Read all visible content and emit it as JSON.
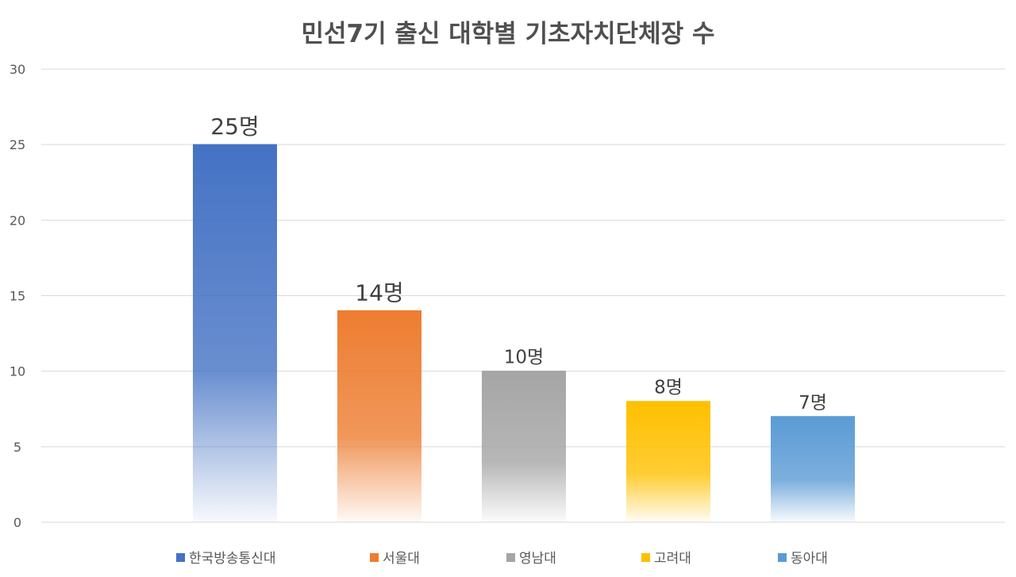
{
  "chart_data": {
    "type": "bar",
    "title": "민선7기 출신 대학별 기초자치단체장 수",
    "categories": [
      "한국방송통신대",
      "서울대",
      "영남대",
      "고려대",
      "동아대"
    ],
    "values": [
      25,
      14,
      10,
      8,
      7
    ],
    "data_labels": [
      "25명",
      "14명",
      "10명",
      "8명",
      "7명"
    ],
    "colors": [
      "#4472C4",
      "#ED7D31",
      "#A5A5A5",
      "#FFC000",
      "#5B9BD5"
    ],
    "ylim": [
      0,
      30
    ],
    "yticks": [
      0,
      5,
      10,
      15,
      20,
      25,
      30
    ],
    "ytick_labels": [
      "0",
      "5",
      "10",
      "15",
      "20",
      "25",
      "30"
    ],
    "grid": true,
    "legend_position": "bottom",
    "xlabel": "",
    "ylabel": ""
  }
}
